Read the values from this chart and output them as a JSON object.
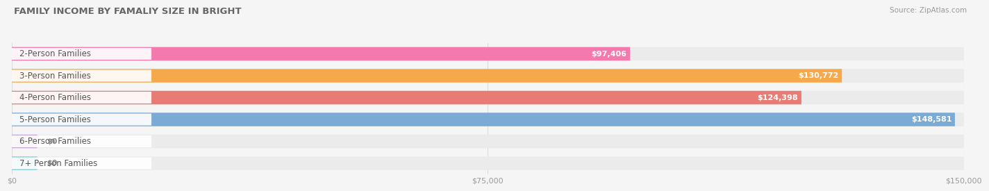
{
  "title": "FAMILY INCOME BY FAMALIY SIZE IN BRIGHT",
  "source": "Source: ZipAtlas.com",
  "categories": [
    "2-Person Families",
    "3-Person Families",
    "4-Person Families",
    "5-Person Families",
    "6-Person Families",
    "7+ Person Families"
  ],
  "values": [
    97406,
    130772,
    124398,
    148581,
    0,
    0
  ],
  "bar_colors": [
    "#F47AAE",
    "#F5A94A",
    "#E97B75",
    "#7BAAD4",
    "#C8A8D8",
    "#7ECECE"
  ],
  "bar_bg_colors": [
    "#EBEBEB",
    "#EBEBEB",
    "#EBEBEB",
    "#EBEBEB",
    "#EBEBEB",
    "#EBEBEB"
  ],
  "value_labels": [
    "$97,406",
    "$130,772",
    "$124,398",
    "$148,581",
    "$0",
    "$0"
  ],
  "xlim": [
    0,
    150000
  ],
  "xmax": 150000,
  "xticks": [
    0,
    75000,
    150000
  ],
  "xtick_labels": [
    "$0",
    "$75,000",
    "$150,000"
  ],
  "background_color": "#f5f5f5",
  "bar_height": 0.62,
  "label_fontsize": 8.5,
  "value_fontsize": 8.0,
  "title_fontsize": 9.5,
  "source_fontsize": 7.5
}
